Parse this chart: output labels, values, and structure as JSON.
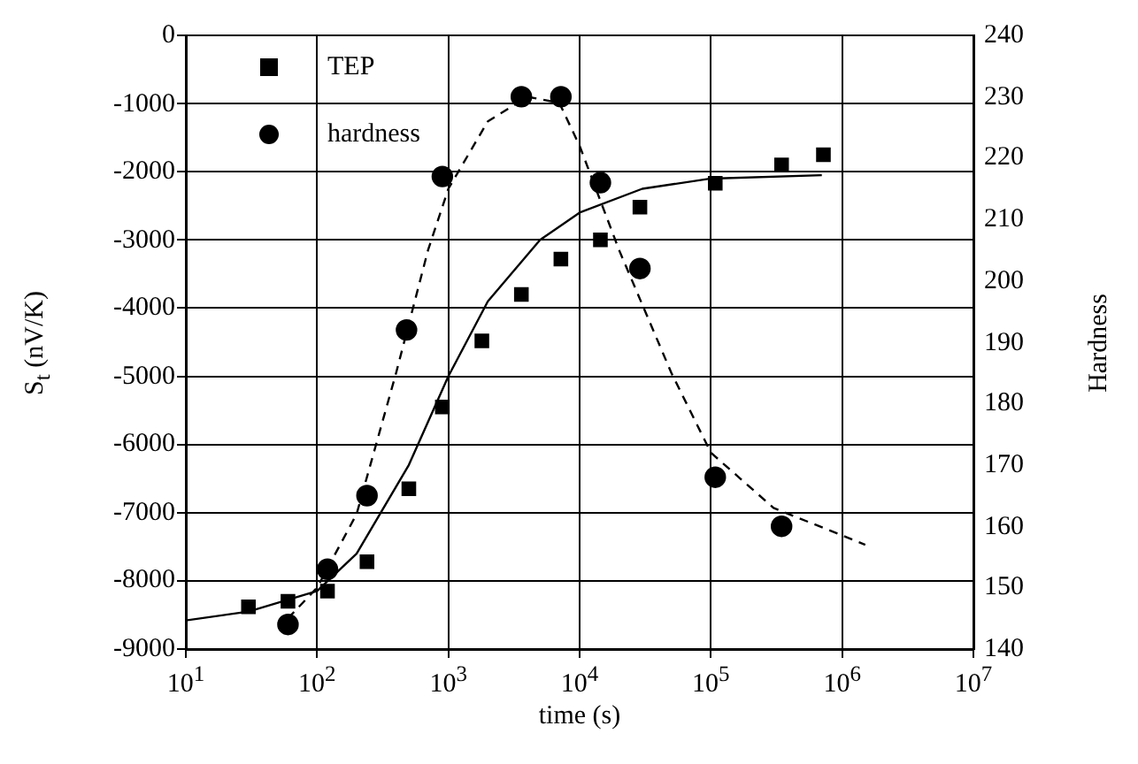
{
  "chart_data": {
    "type": "scatter",
    "xlabel": "time (s)",
    "ylabel": "S$_{t}$ (nV/K)",
    "y2label": "Hardness",
    "log": "x",
    "grid": true,
    "legend": "top left",
    "xlim": [
      10,
      10000000
    ],
    "xticks": [
      {
        "value": 10,
        "label": "10$^{1}$"
      },
      {
        "value": 100,
        "label": "10$^{2}$"
      },
      {
        "value": 1000,
        "label": "10$^{3}$"
      },
      {
        "value": 10000,
        "label": "10$^{4}$"
      },
      {
        "value": 100000,
        "label": "10$^{5}$"
      },
      {
        "value": 1000000,
        "label": "10$^{6}$"
      },
      {
        "value": 10000000,
        "label": "10$^{7}$"
      }
    ],
    "ylim": [
      -9000,
      0
    ],
    "yticks": [
      -9000,
      -8000,
      -7000,
      -6000,
      -5000,
      -4000,
      -3000,
      -2000,
      -1000,
      0
    ],
    "y2lim": [
      140,
      240
    ],
    "y2ticks": [
      140,
      150,
      160,
      170,
      180,
      190,
      200,
      210,
      220,
      230,
      240
    ],
    "series": [
      {
        "name": "TEP",
        "marker": "square",
        "color": "#000000",
        "x": [
          30,
          60,
          120,
          240,
          500,
          900,
          1800,
          3600,
          7200,
          14400,
          28800,
          108000,
          345600,
          720000
        ],
        "values": [
          -8380,
          -8300,
          -8150,
          -7720,
          -6650,
          -5450,
          -4480,
          -3800,
          -3280,
          -3000,
          -2520,
          -2170,
          -1900,
          -1750
        ]
      },
      {
        "name": "hardness",
        "marker": "circle",
        "axis": "y2",
        "color": "#000000",
        "x": [
          60,
          120,
          240,
          480,
          900,
          3600,
          7200,
          14400,
          28800,
          108000,
          345600
        ],
        "values": [
          144,
          153,
          165,
          192,
          217,
          230,
          230,
          216,
          202,
          168,
          160
        ]
      },
      {
        "type": "line",
        "marker": "none",
        "line_style": "solid",
        "color": "#000000",
        "x": [
          10,
          30,
          100,
          200,
          500,
          1000,
          2000,
          5000,
          10000,
          30000,
          100000,
          700000
        ],
        "values": [
          -8580,
          -8450,
          -8150,
          -7600,
          -6300,
          -5000,
          -3900,
          -3000,
          -2600,
          -2250,
          -2100,
          -2050
        ]
      },
      {
        "type": "line",
        "marker": "none",
        "line_style": "dashed",
        "axis": "y2",
        "color": "#000000",
        "x": [
          60,
          100,
          200,
          400,
          700,
          1000,
          2000,
          4000,
          7000,
          10000,
          20000,
          50000,
          100000,
          300000,
          1500000
        ],
        "values": [
          145,
          150,
          162,
          185,
          205,
          215,
          226,
          230,
          229,
          222,
          205,
          185,
          172,
          163,
          157
        ]
      }
    ]
  }
}
